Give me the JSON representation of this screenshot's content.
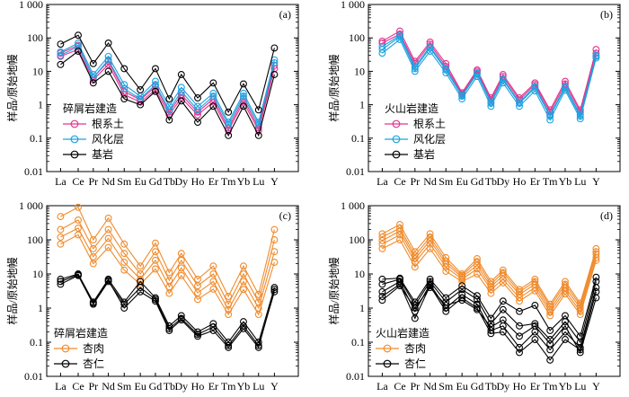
{
  "figure": {
    "ylabel": "样品/原始地幔",
    "yticks": [
      "0.01",
      "0.1",
      "1",
      "10",
      "100",
      "1 000"
    ],
    "ylim": [
      0.01,
      1000
    ],
    "categories": [
      "La",
      "Ce",
      "Pr",
      "Nd",
      "Sm",
      "Eu",
      "Gd",
      "Tb",
      "Dy",
      "Ho",
      "Er",
      "Tm",
      "Yb",
      "Lu",
      "Y"
    ]
  },
  "chart_data": [
    {
      "type": "line",
      "panel_label": "(a)",
      "legend_title": "碎屑岩建造",
      "yscale": "log",
      "series": [
        {
          "name": "根系土",
          "color": "#e0368f",
          "lines": [
            [
              35,
              60,
              6.5,
              20,
              2.5,
              1.4,
              3.5,
              0.6,
              2,
              0.6,
              1.5,
              0.2,
              1.5,
              0.2,
              15
            ],
            [
              28,
              45,
              5.5,
              16,
              2,
              1.2,
              2.8,
              0.5,
              1.6,
              0.5,
              1.2,
              0.17,
              1.2,
              0.17,
              12
            ]
          ]
        },
        {
          "name": "风化层",
          "color": "#1ea2e0",
          "lines": [
            [
              38,
              70,
              8,
              28,
              4,
              1.8,
              5,
              0.9,
              3.3,
              0.9,
              2.2,
              0.3,
              2.2,
              0.3,
              22
            ],
            [
              30,
              55,
              6.5,
              22,
              3,
              1.5,
              4,
              0.7,
              2.5,
              0.7,
              1.8,
              0.25,
              1.8,
              0.25,
              18
            ]
          ]
        },
        {
          "name": "基岩",
          "color": "#000000",
          "lines": [
            [
              65,
              120,
              17,
              70,
              12,
              2.8,
              12,
              1.5,
              8,
              1.6,
              4.5,
              0.6,
              4.2,
              0.7,
              50
            ],
            [
              16,
              40,
              4.5,
              10,
              1.5,
              1,
              2.5,
              0.35,
              1.3,
              0.3,
              0.9,
              0.12,
              0.9,
              0.12,
              8
            ]
          ]
        }
      ]
    },
    {
      "type": "line",
      "panel_label": "(b)",
      "legend_title": "火山岩建造",
      "yscale": "log",
      "series": [
        {
          "name": "根系土",
          "color": "#e0368f",
          "lines": [
            [
              80,
              160,
              20,
              75,
              17,
              2.3,
              11,
              1.6,
              8,
              1.6,
              4.5,
              0.7,
              5,
              0.7,
              45
            ],
            [
              70,
              130,
              17,
              65,
              14,
              2.1,
              10,
              1.4,
              7,
              1.4,
              4,
              0.6,
              4.2,
              0.6,
              35
            ]
          ]
        },
        {
          "name": "风化层",
          "color": "#1ea2e0",
          "lines": [
            [
              55,
              120,
              14,
              55,
              12,
              1.9,
              9,
              1.2,
              6,
              1.2,
              3.5,
              0.5,
              3.5,
              0.5,
              30
            ],
            [
              45,
              110,
              12,
              50,
              11,
              1.8,
              8.5,
              1.1,
              5.5,
              1.1,
              3.2,
              0.45,
              3.2,
              0.45,
              28
            ],
            [
              35,
              90,
              10,
              40,
              9,
              1.5,
              7,
              0.9,
              4.5,
              0.9,
              2.6,
              0.35,
              2.7,
              0.38,
              25
            ]
          ]
        },
        {
          "name": "基岩",
          "color": "#000000",
          "lines": []
        }
      ]
    },
    {
      "type": "line",
      "panel_label": "(c)",
      "legend_title": "碎屑岩建造",
      "yscale": "log",
      "series": [
        {
          "name": "杏肉",
          "color": "#f08b2c",
          "lines": [
            [
              480,
              900,
              100,
              430,
              75,
              17,
              80,
              11,
              40,
              7,
              17,
              2.2,
              17,
              2.5,
              200
            ],
            [
              200,
              380,
              55,
              200,
              40,
              10,
              45,
              6.5,
              25,
              4.5,
              10,
              1.3,
              10,
              1.5,
              100
            ],
            [
              120,
              220,
              32,
              110,
              22,
              7,
              25,
              4.2,
              15,
              2.8,
              6,
              0.9,
              6,
              1,
              45
            ],
            [
              75,
              140,
              20,
              60,
              13,
              5,
              14,
              2.7,
              9,
              1.8,
              3.6,
              0.65,
              3.5,
              0.65,
              22
            ]
          ]
        },
        {
          "name": "杏仁",
          "color": "#000000",
          "lines": [
            [
              7,
              10,
              1.5,
              7,
              1.5,
              6,
              2,
              0.3,
              0.6,
              0.2,
              0.35,
              0.1,
              0.4,
              0.1,
              4
            ],
            [
              5,
              9,
              1.3,
              6,
              1.3,
              4,
              1.8,
              0.25,
              0.5,
              0.17,
              0.28,
              0.08,
              0.3,
              0.08,
              3
            ],
            [
              6,
              9.5,
              1.4,
              6.5,
              1,
              3,
              1.6,
              0.22,
              0.45,
              0.15,
              0.22,
              0.07,
              0.25,
              0.07,
              3.5
            ]
          ]
        }
      ]
    },
    {
      "type": "line",
      "panel_label": "(d)",
      "legend_title": "火山岩建造",
      "yscale": "log",
      "series": [
        {
          "name": "杏肉",
          "color": "#f08b2c",
          "lines": [
            [
              150,
              280,
              45,
              150,
              30,
              10,
              28,
              6,
              13,
              3.5,
              7,
              1.3,
              6,
              1.4,
              55
            ],
            [
              120,
              220,
              35,
              120,
              24,
              9,
              23,
              5,
              11,
              3,
              6,
              1.1,
              5,
              1.2,
              45
            ],
            [
              95,
              180,
              28,
              95,
              20,
              8,
              18,
              4.2,
              9,
              2.5,
              5,
              0.9,
              4,
              1,
              38
            ],
            [
              75,
              140,
              22,
              75,
              16,
              7,
              14,
              3.5,
              7,
              2,
              4,
              0.75,
              3.2,
              0.8,
              30
            ],
            [
              55,
              100,
              16,
              55,
              12,
              6,
              10,
              2.7,
              5.5,
              1.6,
              3.2,
              0.6,
              2.6,
              0.65,
              25
            ]
          ]
        },
        {
          "name": "杏仁",
          "color": "#000000",
          "lines": [
            [
              7,
              7.5,
              1.5,
              7,
              2,
              4.5,
              2.3,
              0.5,
              1.6,
              0.8,
              1.2,
              0.22,
              0.6,
              0.15,
              8
            ],
            [
              5,
              7,
              1.2,
              6,
              1.5,
              3.5,
              1.8,
              0.35,
              0.9,
              0.3,
              0.35,
              0.12,
              0.4,
              0.1,
              6
            ],
            [
              3,
              6,
              0.8,
              5,
              1,
              2.5,
              1.3,
              0.22,
              0.3,
              0.07,
              0.2,
              0.06,
              0.2,
              0.07,
              4
            ],
            [
              2.2,
              5,
              0.5,
              4.5,
              0.8,
              2,
              1,
              0.18,
              0.2,
              0.05,
              0.12,
              0.03,
              0.12,
              0.06,
              3
            ],
            [
              1.7,
              4.5,
              1,
              4,
              1.2,
              1.7,
              0.9,
              0.28,
              0.45,
              0.15,
              0.3,
              0.09,
              0.3,
              0.05,
              2
            ]
          ]
        }
      ]
    }
  ]
}
